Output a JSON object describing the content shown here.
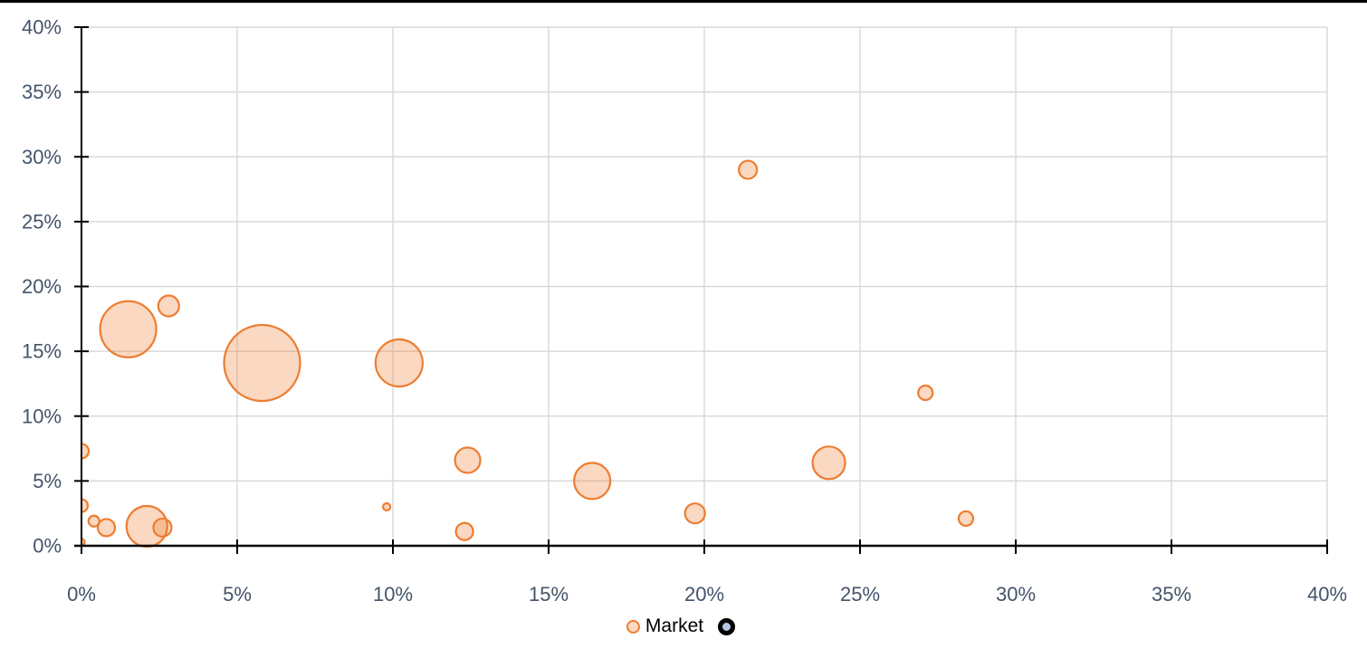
{
  "page": {
    "background": "#FFFFFF",
    "top_border_color": "#000000"
  },
  "chart_data": {
    "type": "scatter",
    "subtype": "bubble",
    "title": "",
    "xlabel": "",
    "ylabel": "",
    "grid": true,
    "x_axis": {
      "min": 0,
      "max": 40,
      "tick_values": [
        0,
        5,
        10,
        15,
        20,
        25,
        30,
        35,
        40
      ],
      "tick_labels": [
        "0%",
        "5%",
        "10%",
        "15%",
        "20%",
        "25%",
        "30%",
        "35%",
        "40%"
      ]
    },
    "y_axis": {
      "min": 0,
      "max": 40,
      "tick_values": [
        0,
        5,
        10,
        15,
        20,
        25,
        30,
        35,
        40
      ],
      "tick_labels": [
        "0%",
        "5%",
        "10%",
        "15%",
        "20%",
        "25%",
        "30%",
        "35%",
        "40%"
      ]
    },
    "colors": {
      "bubble_border": "#ED7D31",
      "bubble_fill": "rgba(237,125,49,0.30)",
      "gridline": "#D9D9D9",
      "axis": "#000000",
      "tick_label": "#44546A",
      "legend_text": "#000000",
      "legend2_fill": "#B4C7E7",
      "legend2_border": "#000000"
    },
    "legend": {
      "position": "bottom",
      "items": [
        {
          "label": "Market",
          "marker": "orange-circle"
        },
        {
          "label": "",
          "marker": "black-ring-blue-circle"
        }
      ]
    },
    "series": [
      {
        "name": "Market",
        "points": [
          {
            "x": 0.0,
            "y": 7.3,
            "r": 8
          },
          {
            "x": 0.0,
            "y": 3.1,
            "r": 7
          },
          {
            "x": 0.0,
            "y": 0.3,
            "r": 3.5
          },
          {
            "x": 0.4,
            "y": 1.9,
            "r": 6
          },
          {
            "x": 0.8,
            "y": 1.4,
            "r": 9.5
          },
          {
            "x": 1.5,
            "y": 16.7,
            "r": 31
          },
          {
            "x": 2.1,
            "y": 1.5,
            "r": 22.5
          },
          {
            "x": 2.6,
            "y": 1.4,
            "r": 10
          },
          {
            "x": 2.8,
            "y": 18.5,
            "r": 11.5
          },
          {
            "x": 5.8,
            "y": 14.1,
            "r": 42
          },
          {
            "x": 9.8,
            "y": 3.0,
            "r": 4
          },
          {
            "x": 10.2,
            "y": 14.1,
            "r": 26
          },
          {
            "x": 12.3,
            "y": 1.1,
            "r": 9.5
          },
          {
            "x": 12.4,
            "y": 6.6,
            "r": 14
          },
          {
            "x": 16.4,
            "y": 5.0,
            "r": 20
          },
          {
            "x": 19.7,
            "y": 2.5,
            "r": 11
          },
          {
            "x": 21.4,
            "y": 29.0,
            "r": 10
          },
          {
            "x": 24.0,
            "y": 6.4,
            "r": 18
          },
          {
            "x": 27.1,
            "y": 11.8,
            "r": 8
          },
          {
            "x": 28.4,
            "y": 2.1,
            "r": 8
          }
        ]
      }
    ]
  }
}
